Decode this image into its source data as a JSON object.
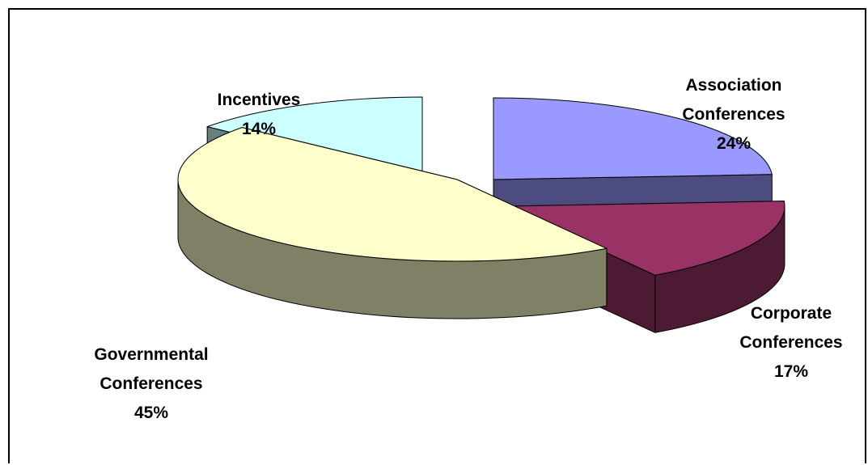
{
  "chart_data": {
    "type": "pie",
    "title": "",
    "slices": [
      {
        "label_lines": [
          "Association",
          "Conferences"
        ],
        "percent_label": "24%",
        "value": 24,
        "top_color": "#9999ff",
        "side_color": "#4c4c80"
      },
      {
        "label_lines": [
          "Corporate",
          "Conferences"
        ],
        "percent_label": "17%",
        "value": 17,
        "top_color": "#993366",
        "side_color": "#4d1a33"
      },
      {
        "label_lines": [
          "Governmental",
          "Conferences"
        ],
        "percent_label": "45%",
        "value": 45,
        "top_color": "#ffffcc",
        "side_color": "#808066"
      },
      {
        "label_lines": [
          "Incentives"
        ],
        "percent_label": "14%",
        "value": 14,
        "top_color": "#ccffff",
        "side_color": "#668080"
      }
    ],
    "legend": "none",
    "style": "3d-exploded"
  }
}
